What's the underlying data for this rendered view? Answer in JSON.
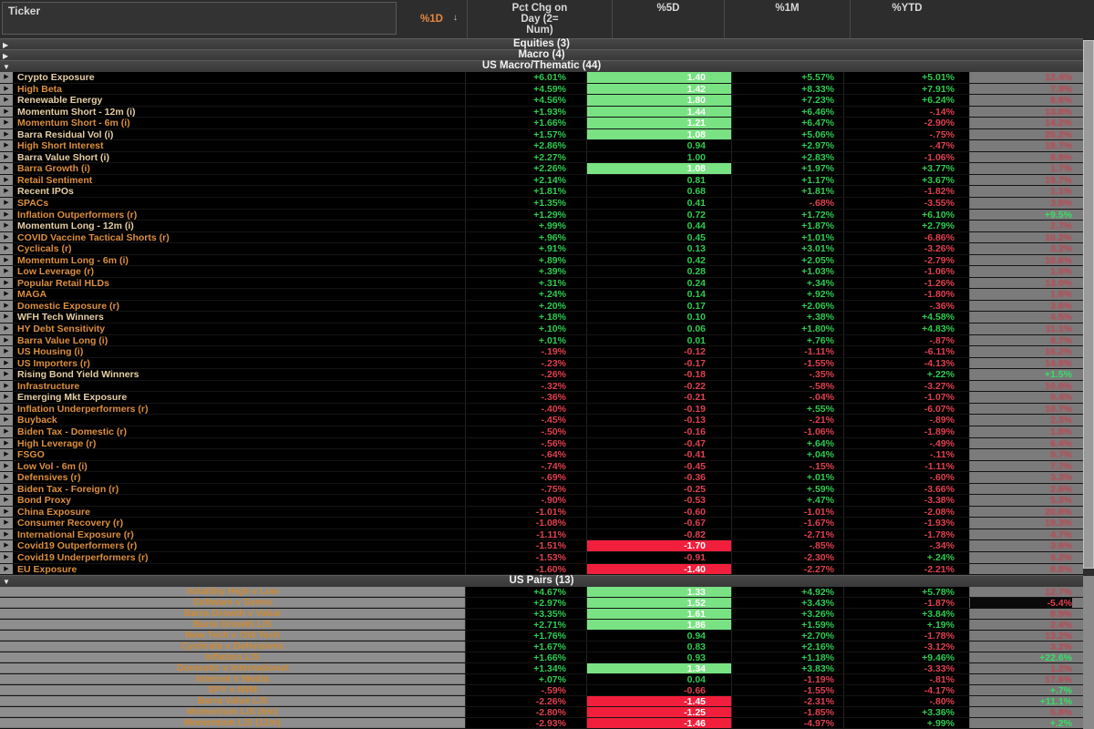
{
  "header": {
    "ticker_label": "Ticker",
    "sort_icon": "↓",
    "columns": [
      {
        "label": "%1D",
        "sorted": true
      },
      {
        "label": "Pct Chg on\nDay (2=\nNum)",
        "sorted": false
      },
      {
        "label": "%5D",
        "sorted": false
      },
      {
        "label": "%1M",
        "sorted": false
      },
      {
        "label": "%YTD",
        "sorted": false
      }
    ]
  },
  "colors": {
    "positive": "#2ecc50",
    "negative": "#e04050",
    "highlight_green": "#79e283",
    "highlight_red": "#f21f3c",
    "label_orange": "#dc8f3e",
    "ytd_column_grey": "#7b7b7b"
  },
  "sections": [
    {
      "id": "equities",
      "label": "Equities (3)",
      "arrow": "▶",
      "expanded": false
    },
    {
      "id": "macro",
      "label": "Macro (4)",
      "arrow": "▶",
      "expanded": false
    },
    {
      "id": "us_macro",
      "label": "US Macro/Thematic (44)",
      "arrow": "▼",
      "expanded": true
    },
    {
      "id": "us_pairs",
      "label": "US Pairs (13)",
      "arrow": "▼",
      "expanded": true
    }
  ],
  "us_macro_rows": [
    {
      "name": "Crypto Exposure",
      "pale": true,
      "d1": "+6.01%",
      "chg": "1.40",
      "chg_hl": "green",
      "d5": "+5.57%",
      "m1": "+5.01%",
      "ytd": "12.4%",
      "ytd_style": "dim"
    },
    {
      "name": "High Beta",
      "pale": false,
      "d1": "+4.59%",
      "chg": "1.42",
      "chg_hl": "green",
      "d5": "+8.33%",
      "m1": "+7.91%",
      "ytd": "7.9%",
      "ytd_style": "dim"
    },
    {
      "name": "Renewable Energy",
      "pale": true,
      "d1": "+4.56%",
      "chg": "1.80",
      "chg_hl": "green",
      "d5": "+7.23%",
      "m1": "+6.24%",
      "ytd": "6.6%",
      "ytd_style": "dim"
    },
    {
      "name": "Momentum Short - 12m (i)",
      "pale": true,
      "d1": "+1.93%",
      "chg": "1.44",
      "chg_hl": "green",
      "d5": "+6.46%",
      "m1": "-.14%",
      "ytd": "13.8%",
      "ytd_style": "dim"
    },
    {
      "name": "Momentum Short - 6m (i)",
      "pale": false,
      "d1": "+1.66%",
      "chg": "1.21",
      "chg_hl": "green",
      "d5": "+6.47%",
      "m1": "-2.90%",
      "ytd": "14.2%",
      "ytd_style": "dim"
    },
    {
      "name": "Barra Residual Vol (i)",
      "pale": true,
      "d1": "+1.57%",
      "chg": "1.08",
      "chg_hl": "green",
      "d5": "+5.06%",
      "m1": "-.75%",
      "ytd": "20.2%",
      "ytd_style": "dim"
    },
    {
      "name": "High Short Interest",
      "pale": false,
      "d1": "+2.86%",
      "chg": "0.94",
      "chg_hl": null,
      "d5": "+2.97%",
      "m1": "-.47%",
      "ytd": "18.7%",
      "ytd_style": "dim"
    },
    {
      "name": "Barra Value Short (i)",
      "pale": true,
      "d1": "+2.27%",
      "chg": "1.00",
      "chg_hl": null,
      "d5": "+2.83%",
      "m1": "-1.06%",
      "ytd": "8.9%",
      "ytd_style": "dim"
    },
    {
      "name": "Barra Growth (i)",
      "pale": false,
      "d1": "+2.26%",
      "chg": "1.08",
      "chg_hl": "green-wide",
      "d5": "+1.97%",
      "m1": "+3.77%",
      "ytd": "1.7%",
      "ytd_style": "dim"
    },
    {
      "name": "Retail Sentiment",
      "pale": false,
      "d1": "+2.14%",
      "chg": "0.81",
      "chg_hl": null,
      "d5": "+1.17%",
      "m1": "+3.67%",
      "ytd": "19.7%",
      "ytd_style": "dim"
    },
    {
      "name": "Recent IPOs",
      "pale": true,
      "d1": "+1.81%",
      "chg": "0.68",
      "chg_hl": null,
      "d5": "+1.81%",
      "m1": "-1.82%",
      "ytd": "1.1%",
      "ytd_style": "dim"
    },
    {
      "name": "SPACs",
      "pale": false,
      "d1": "+1.35%",
      "chg": "0.41",
      "chg_hl": null,
      "d5": "-.68%",
      "m1": "-3.55%",
      "ytd": "3.5%",
      "ytd_style": "dim"
    },
    {
      "name": "Inflation Outperformers (r)",
      "pale": false,
      "d1": "+1.29%",
      "chg": "0.72",
      "chg_hl": null,
      "d5": "+1.72%",
      "m1": "+6.10%",
      "ytd": "+9.5%",
      "ytd_style": "green"
    },
    {
      "name": "Momentum Long - 12m (i)",
      "pale": true,
      "d1": "+.99%",
      "chg": "0.44",
      "chg_hl": null,
      "d5": "+1.87%",
      "m1": "+2.79%",
      "ytd": "2.7%",
      "ytd_style": "dim"
    },
    {
      "name": "COVID Vaccine Tactical Shorts (r)",
      "pale": false,
      "d1": "+.96%",
      "chg": "0.45",
      "chg_hl": null,
      "d5": "+1.01%",
      "m1": "-6.86%",
      "ytd": "10.2%",
      "ytd_style": "dim"
    },
    {
      "name": "Cyclicals (r)",
      "pale": false,
      "d1": "+.91%",
      "chg": "0.13",
      "chg_hl": null,
      "d5": "+3.01%",
      "m1": "-3.26%",
      "ytd": "3.2%",
      "ytd_style": "dim"
    },
    {
      "name": "Momentum Long - 6m (i)",
      "pale": false,
      "d1": "+.89%",
      "chg": "0.42",
      "chg_hl": null,
      "d5": "+2.05%",
      "m1": "-2.79%",
      "ytd": "10.6%",
      "ytd_style": "dim"
    },
    {
      "name": "Low Leverage (r)",
      "pale": false,
      "d1": "+.39%",
      "chg": "0.28",
      "chg_hl": null,
      "d5": "+1.03%",
      "m1": "-1.06%",
      "ytd": "1.0%",
      "ytd_style": "dim"
    },
    {
      "name": "Popular Retail HLDs",
      "pale": false,
      "d1": "+.31%",
      "chg": "0.24",
      "chg_hl": null,
      "d5": "+.34%",
      "m1": "-1.26%",
      "ytd": "13.0%",
      "ytd_style": "dim"
    },
    {
      "name": "MAGA",
      "pale": false,
      "d1": "+.24%",
      "chg": "0.14",
      "chg_hl": null,
      "d5": "+.92%",
      "m1": "-1.80%",
      "ytd": "1.8%",
      "ytd_style": "dim"
    },
    {
      "name": "Domestic Exposure (r)",
      "pale": false,
      "d1": "+.20%",
      "chg": "0.17",
      "chg_hl": null,
      "d5": "+2.06%",
      "m1": "-.36%",
      "ytd": "3.6%",
      "ytd_style": "dim"
    },
    {
      "name": "WFH Tech Winners",
      "pale": true,
      "d1": "+.18%",
      "chg": "0.10",
      "chg_hl": null,
      "d5": "+.38%",
      "m1": "+4.58%",
      "ytd": "4.5%",
      "ytd_style": "dim"
    },
    {
      "name": "HY Debt Sensitivity",
      "pale": false,
      "d1": "+.10%",
      "chg": "0.06",
      "chg_hl": null,
      "d5": "+1.80%",
      "m1": "+4.83%",
      "ytd": "11.1%",
      "ytd_style": "dim"
    },
    {
      "name": "Barra Value Long (i)",
      "pale": false,
      "d1": "+.01%",
      "chg": "0.01",
      "chg_hl": null,
      "d5": "+.76%",
      "m1": "-.87%",
      "ytd": "8.7%",
      "ytd_style": "dim"
    },
    {
      "name": "US Housing (i)",
      "pale": false,
      "d1": "-.19%",
      "chg": "-0.12",
      "chg_hl": null,
      "d5": "-1.11%",
      "m1": "-6.11%",
      "ytd": "16.2%",
      "ytd_style": "dim"
    },
    {
      "name": "US Importers (r)",
      "pale": false,
      "d1": "-.23%",
      "chg": "-0.17",
      "chg_hl": null,
      "d5": "-1.55%",
      "m1": "-4.13%",
      "ytd": "14.8%",
      "ytd_style": "dim"
    },
    {
      "name": "Rising Bond Yield Winners",
      "pale": true,
      "d1": "-.26%",
      "chg": "-0.18",
      "chg_hl": null,
      "d5": "-.35%",
      "m1": "+.22%",
      "ytd": "+1.5%",
      "ytd_style": "green"
    },
    {
      "name": "Infrastructure",
      "pale": false,
      "d1": "-.32%",
      "chg": "-0.22",
      "chg_hl": null,
      "d5": "-.58%",
      "m1": "-3.27%",
      "ytd": "10.0%",
      "ytd_style": "dim"
    },
    {
      "name": "Emerging Mkt Exposure",
      "pale": true,
      "d1": "-.36%",
      "chg": "-0.21",
      "chg_hl": null,
      "d5": "-.04%",
      "m1": "-1.07%",
      "ytd": "0.4%",
      "ytd_style": "dim"
    },
    {
      "name": "Inflation Underperformers (r)",
      "pale": false,
      "d1": "-.40%",
      "chg": "-0.19",
      "chg_hl": null,
      "d5": "+.55%",
      "m1": "-6.07%",
      "ytd": "10.7%",
      "ytd_style": "dim"
    },
    {
      "name": "Buyback",
      "pale": false,
      "d1": "-.45%",
      "chg": "-0.13",
      "chg_hl": null,
      "d5": "-.21%",
      "m1": "-.89%",
      "ytd": "2.3%",
      "ytd_style": "dim"
    },
    {
      "name": "Biden Tax - Domestic (r)",
      "pale": false,
      "d1": "-.50%",
      "chg": "-0.16",
      "chg_hl": null,
      "d5": "-1.06%",
      "m1": "-1.89%",
      "ytd": "1.8%",
      "ytd_style": "dim"
    },
    {
      "name": "High Leverage (r)",
      "pale": false,
      "d1": "-.56%",
      "chg": "-0.47",
      "chg_hl": null,
      "d5": "+.64%",
      "m1": "-.49%",
      "ytd": "6.4%",
      "ytd_style": "dim"
    },
    {
      "name": "FSGO",
      "pale": false,
      "d1": "-.64%",
      "chg": "-0.41",
      "chg_hl": null,
      "d5": "+.04%",
      "m1": "-.11%",
      "ytd": "0.7%",
      "ytd_style": "dim"
    },
    {
      "name": "Low Vol - 6m (i)",
      "pale": false,
      "d1": "-.74%",
      "chg": "-0.45",
      "chg_hl": null,
      "d5": "-.15%",
      "m1": "-1.11%",
      "ytd": "7.7%",
      "ytd_style": "dim"
    },
    {
      "name": "Defensives (r)",
      "pale": false,
      "d1": "-.69%",
      "chg": "-0.36",
      "chg_hl": null,
      "d5": "+.01%",
      "m1": "-.60%",
      "ytd": "3.3%",
      "ytd_style": "dim"
    },
    {
      "name": "Biden Tax  - Foreign (r)",
      "pale": false,
      "d1": "-.75%",
      "chg": "-0.25",
      "chg_hl": null,
      "d5": "+.59%",
      "m1": "-3.66%",
      "ytd": "2.6%",
      "ytd_style": "dim"
    },
    {
      "name": "Bond Proxy",
      "pale": false,
      "d1": "-.90%",
      "chg": "-0.53",
      "chg_hl": null,
      "d5": "+.47%",
      "m1": "-3.38%",
      "ytd": "5.3%",
      "ytd_style": "dim"
    },
    {
      "name": "China Exposure",
      "pale": false,
      "d1": "-1.01%",
      "chg": "-0.60",
      "chg_hl": null,
      "d5": "-1.01%",
      "m1": "-2.08%",
      "ytd": "20.8%",
      "ytd_style": "dim"
    },
    {
      "name": "Consumer Recovery (r)",
      "pale": false,
      "d1": "-1.08%",
      "chg": "-0.67",
      "chg_hl": null,
      "d5": "-1.67%",
      "m1": "-1.93%",
      "ytd": "19.3%",
      "ytd_style": "dim"
    },
    {
      "name": "International Exposure (r)",
      "pale": false,
      "d1": "-1.11%",
      "chg": "-0.82",
      "chg_hl": null,
      "d5": "-2.71%",
      "m1": "-1.78%",
      "ytd": "4.7%",
      "ytd_style": "dim"
    },
    {
      "name": "Covid19 Outperformers (r)",
      "pale": false,
      "d1": "-1.51%",
      "chg": "-1.70",
      "chg_hl": "red",
      "d5": "-.85%",
      "m1": "-.34%",
      "ytd": "3.6%",
      "ytd_style": "dim"
    },
    {
      "name": "Covid19 Underperformers (r)",
      "pale": false,
      "d1": "-1.53%",
      "chg": "-0.91",
      "chg_hl": null,
      "d5": "-2.30%",
      "m1": "+.24%",
      "ytd": "9.2%",
      "ytd_style": "dim"
    },
    {
      "name": "EU Exposure",
      "pale": false,
      "d1": "-1.60%",
      "chg": "-1.40",
      "chg_hl": "red",
      "d5": "-2.27%",
      "m1": "-2.21%",
      "ytd": "8.8%",
      "ytd_style": "dim"
    }
  ],
  "us_pairs_rows": [
    {
      "name": "Volatility High v Low",
      "d1": "+4.67%",
      "chg": "1.33",
      "chg_hl": "green",
      "d5": "+4.92%",
      "m1": "+5.78%",
      "ytd": "12.7%",
      "ytd_style": "dim"
    },
    {
      "name": "Software v Semis",
      "d1": "+2.97%",
      "chg": "1.52",
      "chg_hl": "green",
      "d5": "+3.43%",
      "m1": "-1.87%",
      "ytd": "-5.4%",
      "ytd_style": "black-red"
    },
    {
      "name": "Barra Growth v Value",
      "d1": "+3.35%",
      "chg": "1.61",
      "chg_hl": "green",
      "d5": "+3.26%",
      "m1": "+3.84%",
      "ytd": "8.9%",
      "ytd_style": "dim"
    },
    {
      "name": "Barra Growth L/S",
      "d1": "+2.71%",
      "chg": "1.86",
      "chg_hl": "green",
      "d5": "+1.59%",
      "m1": "+.19%",
      "ytd": "2.4%",
      "ytd_style": "dim"
    },
    {
      "name": "New Tech v Old Tech",
      "d1": "+1.76%",
      "chg": "0.94",
      "chg_hl": null,
      "d5": "+2.70%",
      "m1": "-1.78%",
      "ytd": "13.2%",
      "ytd_style": "dim"
    },
    {
      "name": "Cyclicals v Defensives",
      "d1": "+1.67%",
      "chg": "0.83",
      "chg_hl": null,
      "d5": "+2.16%",
      "m1": "-3.12%",
      "ytd": "3.2%",
      "ytd_style": "dim"
    },
    {
      "name": "Inflation L/S",
      "d1": "+1.66%",
      "chg": "0.93",
      "chg_hl": null,
      "d5": "+1.18%",
      "m1": "+9.46%",
      "ytd": "+22.6%",
      "ytd_style": "green"
    },
    {
      "name": "Domestic v International",
      "d1": "+1.34%",
      "chg": "1.34",
      "chg_hl": "green",
      "d5": "+3.83%",
      "m1": "-3.33%",
      "ytd": "1.2%",
      "ytd_style": "dim"
    },
    {
      "name": "Internet v Media",
      "d1": "+.07%",
      "chg": "0.04",
      "chg_hl": null,
      "d5": "-1.19%",
      "m1": "-.81%",
      "ytd": "17.6%",
      "ytd_style": "dim"
    },
    {
      "name": "SPY v IWM",
      "d1": "-.59%",
      "chg": "-0.66",
      "chg_hl": null,
      "d5": "-1.55%",
      "m1": "-4.17%",
      "ytd": "+.7%",
      "ytd_style": "green"
    },
    {
      "name": "Barra Value L/S",
      "d1": "-2.26%",
      "chg": "-1.45",
      "chg_hl": "red",
      "d5": "-2.31%",
      "m1": "-.80%",
      "ytd": "+11.1%",
      "ytd_style": "green"
    },
    {
      "name": "Momentum L/S (6m)",
      "d1": "-2.80%",
      "chg": "-1.25",
      "chg_hl": "red",
      "d5": "-1.85%",
      "m1": "+3.36%",
      "ytd": "5.8%",
      "ytd_style": "dim"
    },
    {
      "name": "Momentum L/S (12m)",
      "d1": "-2.93%",
      "chg": "-1.46",
      "chg_hl": "red",
      "d5": "-4.97%",
      "m1": "+.99%",
      "ytd": "+.2%",
      "ytd_style": "green"
    }
  ]
}
